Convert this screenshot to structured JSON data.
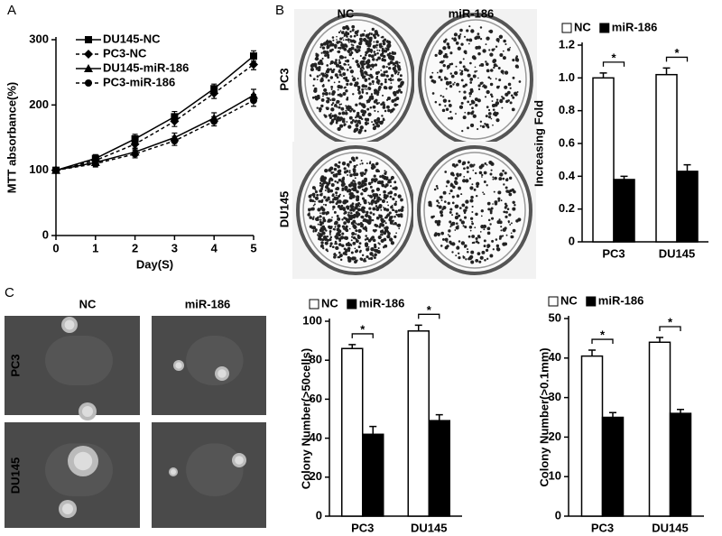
{
  "panels": {
    "labels": [
      "A",
      "B",
      "C"
    ],
    "b_columns": [
      "NC",
      "miR-186"
    ],
    "b_rows": [
      "PC3",
      "DU145"
    ],
    "c_columns": [
      "NC",
      "miR-186"
    ],
    "c_rows": [
      "PC3",
      "DU145"
    ]
  },
  "chart_data": [
    {
      "type": "line",
      "y_label": "MTT absorbance(%)",
      "x_label": "Day(S)",
      "x": [
        0,
        1,
        2,
        3,
        4,
        5
      ],
      "xlim": [
        0,
        5
      ],
      "xticks": [
        0,
        1,
        2,
        3,
        4,
        5
      ],
      "ylim": [
        0,
        300
      ],
      "yticks": [
        0,
        100,
        200,
        300
      ],
      "series": [
        {
          "name": "DU145-NC",
          "color": "#000000",
          "marker": "square",
          "dashed": false,
          "values": [
            100,
            118,
            148,
            182,
            225,
            275
          ],
          "errors": [
            3,
            6,
            7,
            8,
            7,
            8
          ]
        },
        {
          "name": "PC3-NC",
          "color": "#000000",
          "marker": "diamond",
          "dashed": true,
          "values": [
            100,
            115,
            140,
            175,
            218,
            262
          ],
          "errors": [
            3,
            6,
            7,
            8,
            8,
            8
          ]
        },
        {
          "name": "DU145-miR-186",
          "color": "#000000",
          "marker": "triangle",
          "dashed": false,
          "values": [
            100,
            112,
            128,
            150,
            180,
            215
          ],
          "errors": [
            3,
            5,
            6,
            7,
            8,
            9
          ]
        },
        {
          "name": "PC3-miR-186",
          "color": "#000000",
          "marker": "circle",
          "dashed": true,
          "values": [
            100,
            110,
            125,
            145,
            175,
            207
          ],
          "errors": [
            3,
            5,
            6,
            7,
            7,
            9
          ]
        }
      ]
    },
    {
      "type": "bar",
      "y_label": "Increasing  Fold",
      "categories": [
        "PC3",
        "DU145"
      ],
      "ylim": [
        0,
        1.2
      ],
      "yticks": [
        0,
        0.2,
        0.4,
        0.6,
        0.8,
        {
          "value": 1,
          "label": "1.0"
        },
        1.2
      ],
      "annotations": [
        "*",
        "*"
      ],
      "series": [
        {
          "name": "NC",
          "color": "#ffffff",
          "values": [
            1.0,
            1.02
          ],
          "errors": [
            0.03,
            0.04
          ]
        },
        {
          "name": "miR-186",
          "color": "#000000",
          "values": [
            0.38,
            0.43
          ],
          "errors": [
            0.02,
            0.04
          ]
        }
      ]
    },
    {
      "type": "bar",
      "y_label": "Colony Number(>50cells)",
      "categories": [
        "PC3",
        "DU145"
      ],
      "ylim": [
        0,
        100
      ],
      "yticks": [
        0,
        20,
        40,
        60,
        80,
        100
      ],
      "annotations": [
        "*",
        "*"
      ],
      "series": [
        {
          "name": "NC",
          "color": "#ffffff",
          "values": [
            86,
            95
          ],
          "errors": [
            2,
            3
          ]
        },
        {
          "name": "miR-186",
          "color": "#000000",
          "values": [
            42,
            49
          ],
          "errors": [
            4,
            3
          ]
        }
      ]
    },
    {
      "type": "bar",
      "y_label": "Colony Number(>0.1mm)",
      "categories": [
        "PC3",
        "DU145"
      ],
      "ylim": [
        0,
        50
      ],
      "yticks": [
        0,
        10,
        20,
        30,
        40,
        50
      ],
      "annotations": [
        "*",
        "*"
      ],
      "series": [
        {
          "name": "NC",
          "color": "#ffffff",
          "values": [
            40.5,
            44
          ],
          "errors": [
            1.5,
            1.2
          ]
        },
        {
          "name": "miR-186",
          "color": "#000000",
          "values": [
            25,
            26
          ],
          "errors": [
            1.2,
            1
          ]
        }
      ]
    }
  ]
}
